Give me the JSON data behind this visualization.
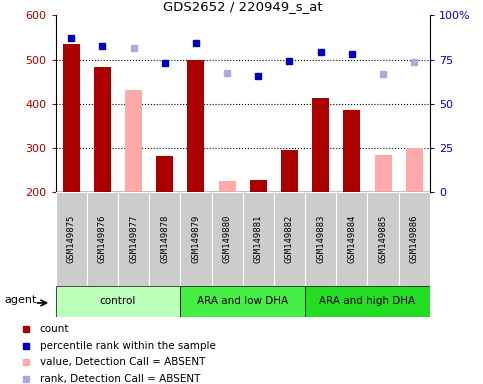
{
  "title": "GDS2652 / 220949_s_at",
  "samples": [
    "GSM149875",
    "GSM149876",
    "GSM149877",
    "GSM149878",
    "GSM149879",
    "GSM149880",
    "GSM149881",
    "GSM149882",
    "GSM149883",
    "GSM149884",
    "GSM149885",
    "GSM149886"
  ],
  "groups": [
    {
      "label": "control",
      "color": "#bbffbb",
      "n": 4
    },
    {
      "label": "ARA and low DHA",
      "color": "#44ee44",
      "n": 4
    },
    {
      "label": "ARA and high DHA",
      "color": "#22dd22",
      "n": 4
    }
  ],
  "count_present": [
    535,
    483,
    null,
    281,
    500,
    null,
    227,
    296,
    413,
    385,
    null,
    null
  ],
  "count_absent": [
    null,
    null,
    430,
    null,
    null,
    225,
    null,
    null,
    null,
    null,
    283,
    299
  ],
  "rank_present": [
    549,
    530,
    null,
    492,
    537,
    null,
    462,
    497,
    518,
    512,
    null,
    null
  ],
  "rank_absent": [
    null,
    null,
    525,
    null,
    null,
    470,
    null,
    null,
    null,
    null,
    467,
    494
  ],
  "ylim_left": [
    200,
    600
  ],
  "yticks_left": [
    200,
    300,
    400,
    500,
    600
  ],
  "yticks_right_vals": [
    200,
    300,
    400,
    500,
    600
  ],
  "yticks_right_labels": [
    "0",
    "25",
    "50",
    "75",
    "100%"
  ],
  "dotted_lines": [
    300,
    400,
    500
  ],
  "bar_width": 0.55,
  "count_color": "#aa0000",
  "count_absent_color": "#ffaaaa",
  "rank_present_color": "#0000bb",
  "rank_absent_color": "#aaaadd",
  "sample_box_color": "#cccccc",
  "legend_items": [
    {
      "color": "#aa0000",
      "marker": "s",
      "label": "count"
    },
    {
      "color": "#0000bb",
      "marker": "s",
      "label": "percentile rank within the sample"
    },
    {
      "color": "#ffaaaa",
      "marker": "s",
      "label": "value, Detection Call = ABSENT"
    },
    {
      "color": "#aaaadd",
      "marker": "s",
      "label": "rank, Detection Call = ABSENT"
    }
  ]
}
